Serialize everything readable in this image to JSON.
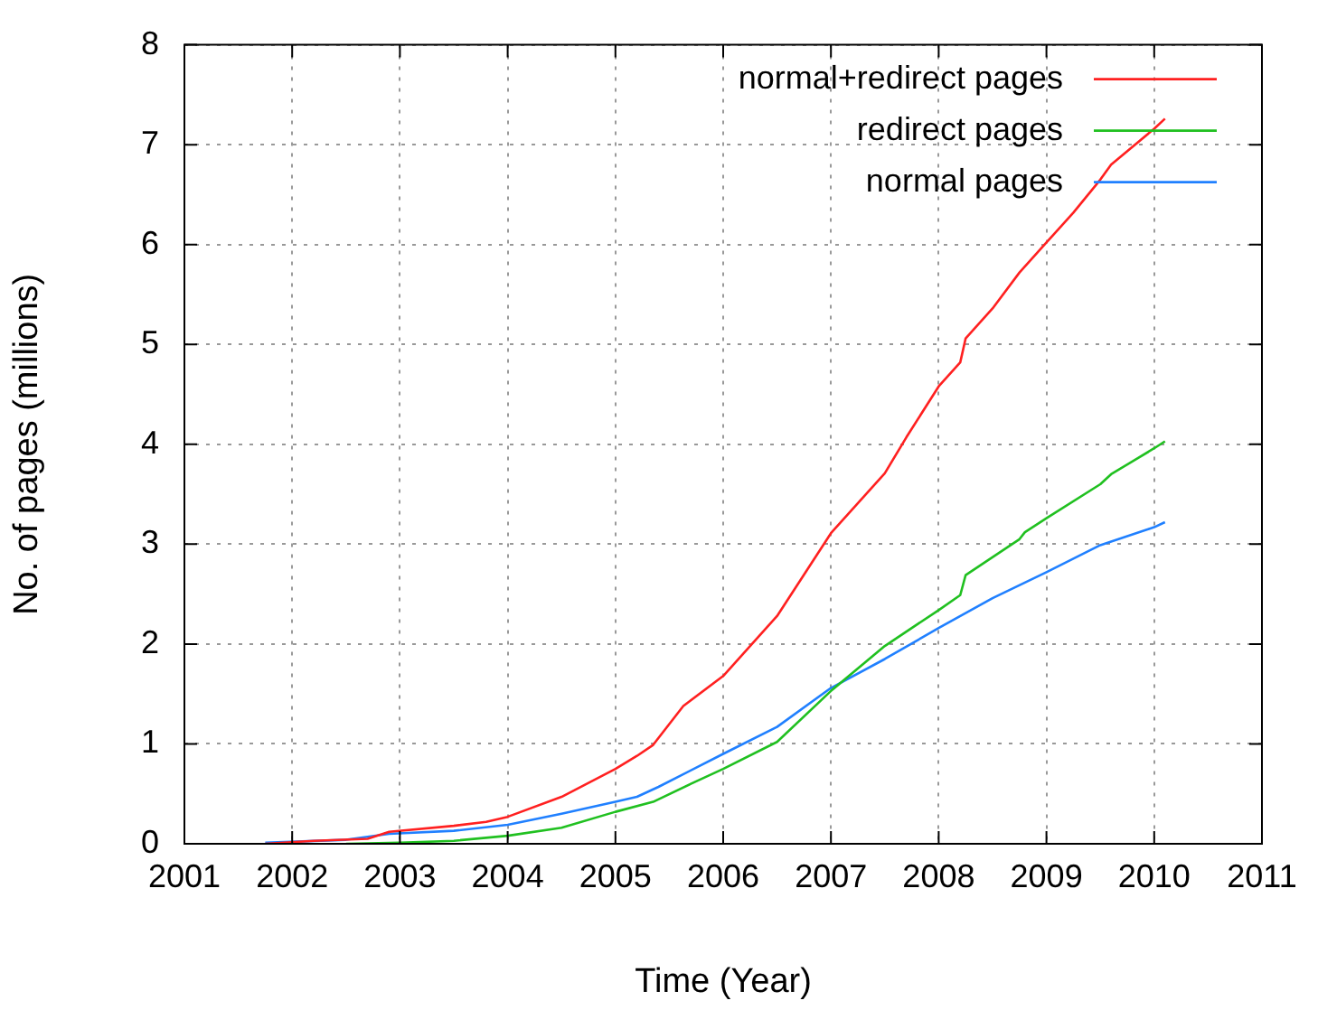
{
  "chart_data": {
    "type": "line",
    "xlabel": "Time (Year)",
    "ylabel": "No. of pages (millions)",
    "xlim": [
      2001,
      2011
    ],
    "xticks": [
      2001,
      2002,
      2003,
      2004,
      2005,
      2006,
      2007,
      2008,
      2009,
      2010,
      2011
    ],
    "ylim": [
      0,
      8
    ],
    "yticks": [
      0,
      1,
      2,
      3,
      4,
      5,
      6,
      7,
      8
    ],
    "grid": true,
    "legend": "top right",
    "marker": "none",
    "line_style": "solid",
    "series": [
      {
        "name": "normal+redirect pages",
        "color": "#ff2020",
        "x": [
          2001.75,
          2002.2,
          2002.7,
          2002.9,
          2003.5,
          2003.8,
          2004,
          2004.5,
          2005,
          2005.2,
          2005.35,
          2005.63,
          2006,
          2006.5,
          2007,
          2007.5,
          2007.7,
          2008,
          2008.2,
          2008.25,
          2008.5,
          2008.75,
          2009,
          2009.25,
          2009.5,
          2009.6,
          2010,
          2010.1
        ],
        "values": [
          0,
          0.03,
          0.05,
          0.12,
          0.18,
          0.22,
          0.27,
          0.47,
          0.75,
          0.88,
          0.99,
          1.38,
          1.68,
          2.28,
          3.11,
          3.71,
          4.07,
          4.58,
          4.82,
          5.06,
          5.36,
          5.72,
          6.02,
          6.32,
          6.65,
          6.8,
          7.16,
          7.26
        ]
      },
      {
        "name": "redirect pages",
        "color": "#20c020",
        "x": [
          2002.5,
          2003,
          2003.5,
          2004,
          2004.5,
          2005,
          2005.35,
          2005.7,
          2006,
          2006.5,
          2007,
          2007.5,
          2008,
          2008.2,
          2008.25,
          2008.75,
          2008.8,
          2009,
          2009.5,
          2009.6,
          2010,
          2010.1
        ],
        "values": [
          0,
          0.01,
          0.03,
          0.08,
          0.16,
          0.32,
          0.42,
          0.6,
          0.75,
          1.02,
          1.53,
          1.98,
          2.34,
          2.49,
          2.69,
          3.05,
          3.12,
          3.26,
          3.6,
          3.7,
          3.96,
          4.03
        ]
      },
      {
        "name": "normal pages",
        "color": "#2080ff",
        "x": [
          2001.75,
          2002.5,
          2002.9,
          2003.5,
          2004,
          2004.5,
          2005,
          2005.2,
          2005.4,
          2006,
          2006.5,
          2007,
          2007.5,
          2008,
          2008.5,
          2009,
          2009.5,
          2010,
          2010.1
        ],
        "values": [
          0.01,
          0.04,
          0.1,
          0.13,
          0.19,
          0.3,
          0.42,
          0.47,
          0.57,
          0.9,
          1.17,
          1.56,
          1.85,
          2.16,
          2.46,
          2.72,
          2.99,
          3.17,
          3.22
        ]
      }
    ]
  }
}
